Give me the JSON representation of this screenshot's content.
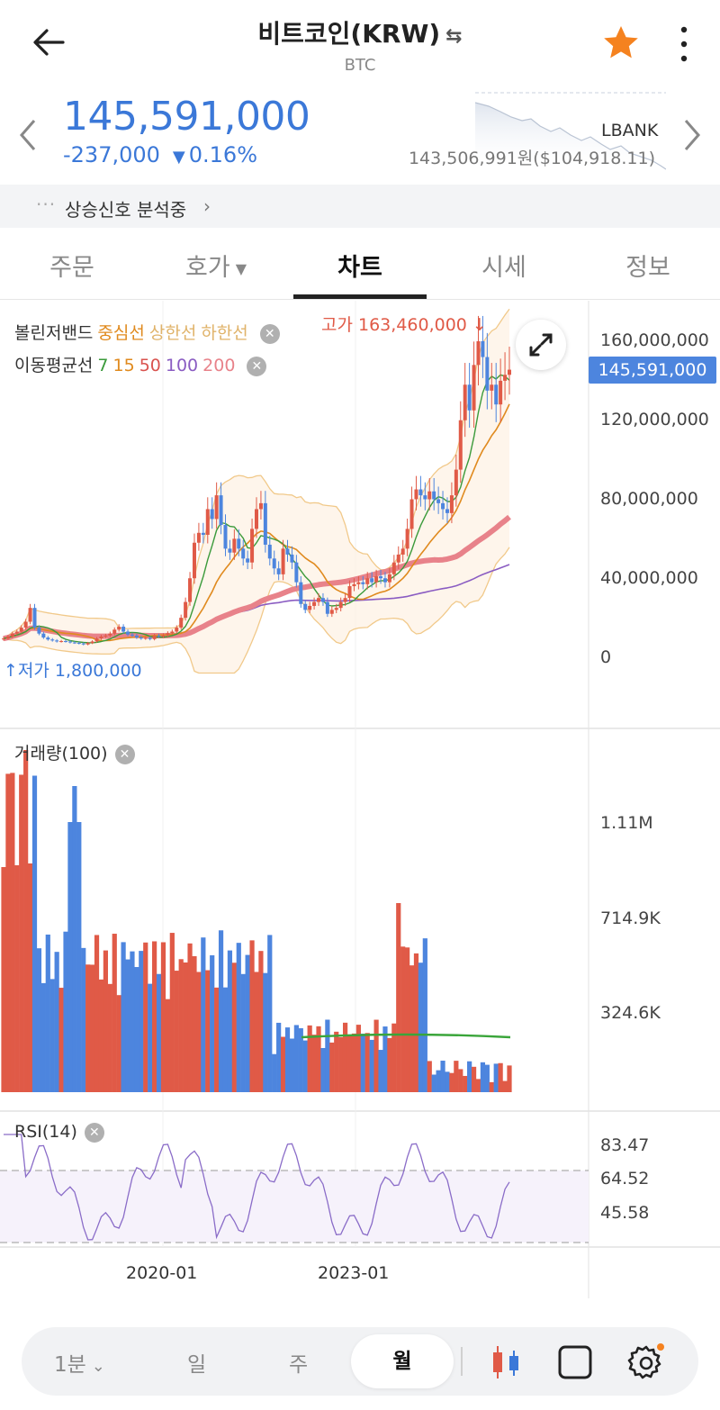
{
  "header": {
    "title": "비트코인(KRW)",
    "swap_icon": "⇆",
    "symbol": "BTC",
    "favorite_color": "#f5821f"
  },
  "quote": {
    "price": "145,591,000",
    "change": "-237,000",
    "change_pct": "0.16%",
    "direction_icon": "▼",
    "exchange": "LBANK",
    "exchange_price": "143,506,991원($104,918.11)",
    "color_down": "#3b78d8"
  },
  "signal": {
    "label": "상승신호 분석중"
  },
  "tabs": [
    {
      "label": "주문"
    },
    {
      "label": "호가"
    },
    {
      "label": "차트"
    },
    {
      "label": "시세"
    },
    {
      "label": "정보"
    }
  ],
  "active_tab": "차트",
  "legend": {
    "bollinger": "볼린저밴드",
    "bb_mid": "중심선",
    "bb_upper": "상한선",
    "bb_lower": "하한선",
    "ma": "이동평균선",
    "ma_periods": [
      "7",
      "15",
      "50",
      "100",
      "200"
    ],
    "ma_colors": [
      "#3a9a3a",
      "#e08a1e",
      "#d9534f",
      "#8a5cc2",
      "#e8828a"
    ]
  },
  "chart_data": [
    {
      "type": "candlestick",
      "high_label": "고가 163,460,000",
      "low_label": "저가 1,800,000",
      "y_ticks": [
        "160,000,000",
        "120,000,000",
        "80,000,000",
        "40,000,000",
        "0"
      ],
      "y_tick_values": [
        160000000,
        120000000,
        80000000,
        40000000,
        0
      ],
      "current_price": "145,591,000",
      "current_value": 145591000,
      "ylim": [
        -10000000,
        170000000
      ],
      "x_ticks": [
        "2020-01",
        "2023-01"
      ],
      "close": [
        9.5,
        10.5,
        12,
        13,
        15,
        18,
        25,
        15,
        12,
        10,
        9,
        8.5,
        8,
        8.2,
        8,
        7.5,
        7.3,
        7,
        6.5,
        7.2,
        8,
        9.5,
        10.5,
        11,
        12,
        14,
        15.5,
        13,
        11.5,
        11,
        10,
        9.5,
        9.8,
        9.2,
        11,
        10.5,
        11.2,
        12.2,
        13,
        15,
        20,
        28,
        40,
        58,
        63,
        62,
        75,
        70,
        82,
        67,
        55,
        53,
        60,
        55,
        50,
        48,
        65,
        75,
        78,
        57,
        50,
        45,
        42,
        55,
        52,
        48,
        38,
        27,
        24,
        26,
        28,
        30,
        28,
        22,
        24,
        25,
        28,
        30,
        36,
        37,
        38,
        37,
        40,
        38,
        41,
        40,
        38,
        42,
        48,
        52,
        55,
        65,
        80,
        85,
        82,
        80,
        84,
        80,
        78,
        75,
        73,
        82,
        95,
        120,
        138,
        125,
        148,
        160,
        152,
        135,
        138,
        128,
        140,
        143,
        145.6
      ],
      "volume_ticks": [
        "1.11M",
        "714.9K",
        "324.6K"
      ],
      "rsi_ticks": [
        "83.47",
        "64.52",
        "45.58"
      ]
    }
  ],
  "volume": {
    "title": "거래량(100)"
  },
  "rsi": {
    "title": "RSI(14)"
  },
  "bottom": {
    "interval": "1분",
    "day": "일",
    "week": "주",
    "month": "월",
    "active": "월"
  }
}
